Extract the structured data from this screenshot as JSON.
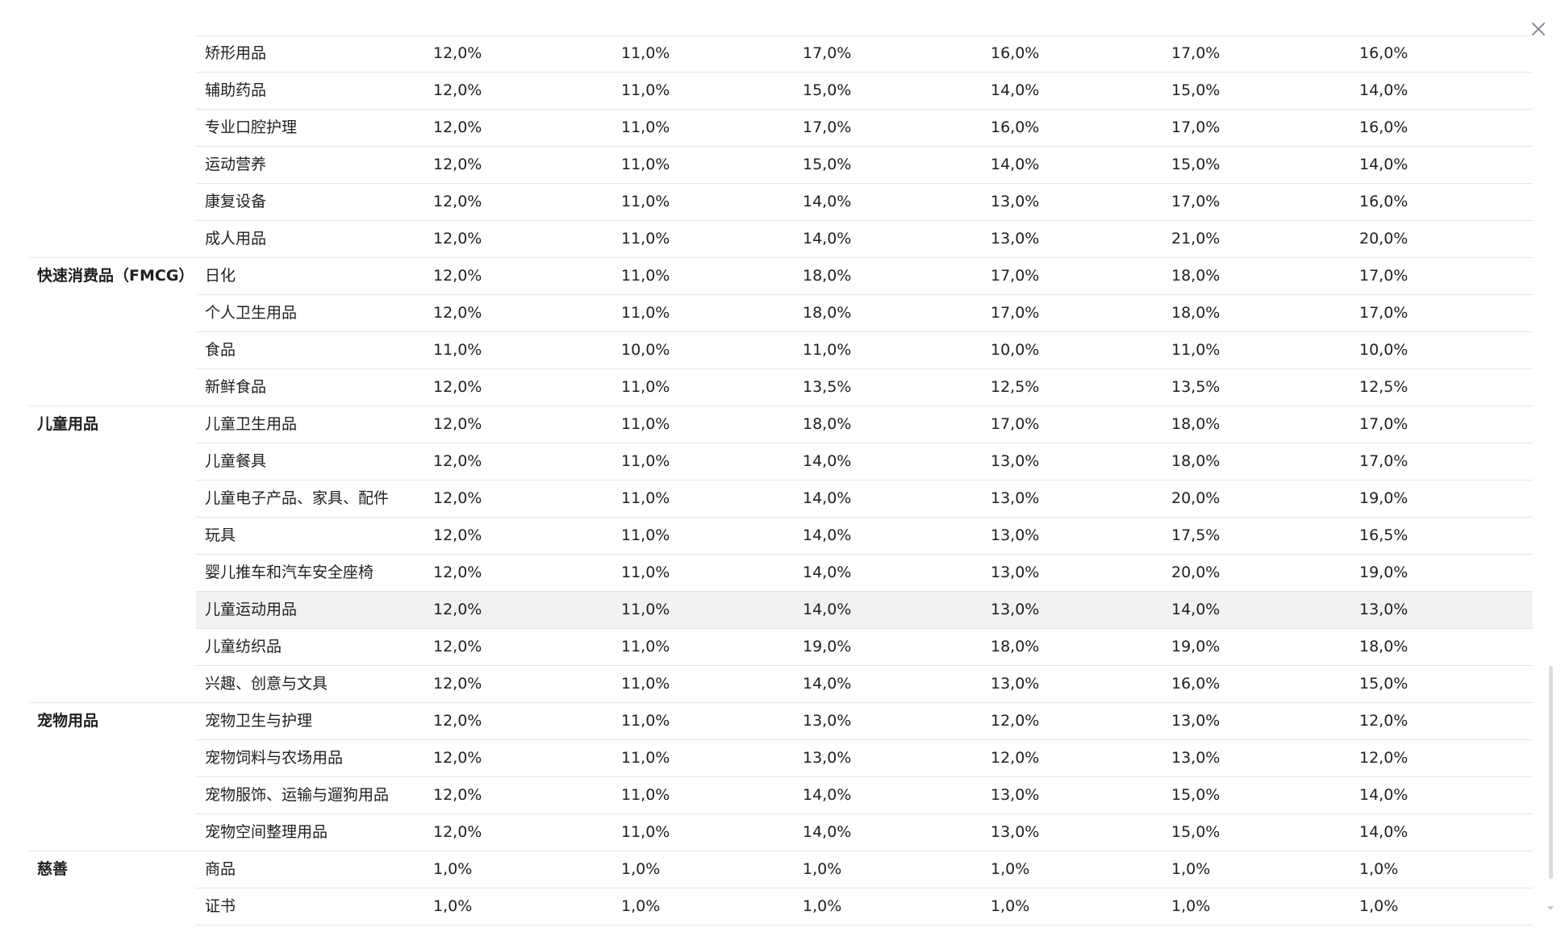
{
  "table": {
    "rows": [
      {
        "group": "",
        "sub": "矫形用品",
        "v": [
          "12,0%",
          "11,0%",
          "17,0%",
          "16,0%",
          "17,0%",
          "16,0%"
        ]
      },
      {
        "group": "",
        "sub": "辅助药品",
        "v": [
          "12,0%",
          "11,0%",
          "15,0%",
          "14,0%",
          "15,0%",
          "14,0%"
        ]
      },
      {
        "group": "",
        "sub": "专业口腔护理",
        "v": [
          "12,0%",
          "11,0%",
          "17,0%",
          "16,0%",
          "17,0%",
          "16,0%"
        ]
      },
      {
        "group": "",
        "sub": "运动营养",
        "v": [
          "12,0%",
          "11,0%",
          "15,0%",
          "14,0%",
          "15,0%",
          "14,0%"
        ]
      },
      {
        "group": "",
        "sub": "康复设备",
        "v": [
          "12,0%",
          "11,0%",
          "14,0%",
          "13,0%",
          "17,0%",
          "16,0%"
        ]
      },
      {
        "group": "",
        "sub": "成人用品",
        "v": [
          "12,0%",
          "11,0%",
          "14,0%",
          "13,0%",
          "21,0%",
          "20,0%"
        ]
      },
      {
        "group": "快速消费品（FMCG）",
        "sub": "日化",
        "v": [
          "12,0%",
          "11,0%",
          "18,0%",
          "17,0%",
          "18,0%",
          "17,0%"
        ]
      },
      {
        "group": "",
        "sub": "个人卫生用品",
        "v": [
          "12,0%",
          "11,0%",
          "18,0%",
          "17,0%",
          "18,0%",
          "17,0%"
        ]
      },
      {
        "group": "",
        "sub": "食品",
        "v": [
          "11,0%",
          "10,0%",
          "11,0%",
          "10,0%",
          "11,0%",
          "10,0%"
        ]
      },
      {
        "group": "",
        "sub": "新鲜食品",
        "v": [
          "12,0%",
          "11,0%",
          "13,5%",
          "12,5%",
          "13,5%",
          "12,5%"
        ]
      },
      {
        "group": "儿童用品",
        "sub": "儿童卫生用品",
        "v": [
          "12,0%",
          "11,0%",
          "18,0%",
          "17,0%",
          "18,0%",
          "17,0%"
        ]
      },
      {
        "group": "",
        "sub": "儿童餐具",
        "v": [
          "12,0%",
          "11,0%",
          "14,0%",
          "13,0%",
          "18,0%",
          "17,0%"
        ]
      },
      {
        "group": "",
        "sub": "儿童电子产品、家具、配件",
        "v": [
          "12,0%",
          "11,0%",
          "14,0%",
          "13,0%",
          "20,0%",
          "19,0%"
        ]
      },
      {
        "group": "",
        "sub": "玩具",
        "v": [
          "12,0%",
          "11,0%",
          "14,0%",
          "13,0%",
          "17,5%",
          "16,5%"
        ]
      },
      {
        "group": "",
        "sub": "婴儿推车和汽车安全座椅",
        "v": [
          "12,0%",
          "11,0%",
          "14,0%",
          "13,0%",
          "20,0%",
          "19,0%"
        ]
      },
      {
        "group": "",
        "sub": "儿童运动用品",
        "v": [
          "12,0%",
          "11,0%",
          "14,0%",
          "13,0%",
          "14,0%",
          "13,0%"
        ],
        "highlight": true
      },
      {
        "group": "",
        "sub": "儿童纺织品",
        "v": [
          "12,0%",
          "11,0%",
          "19,0%",
          "18,0%",
          "19,0%",
          "18,0%"
        ]
      },
      {
        "group": "",
        "sub": "兴趣、创意与文具",
        "v": [
          "12,0%",
          "11,0%",
          "14,0%",
          "13,0%",
          "16,0%",
          "15,0%"
        ]
      },
      {
        "group": "宠物用品",
        "sub": "宠物卫生与护理",
        "v": [
          "12,0%",
          "11,0%",
          "13,0%",
          "12,0%",
          "13,0%",
          "12,0%"
        ]
      },
      {
        "group": "",
        "sub": "宠物饲料与农场用品",
        "v": [
          "12,0%",
          "11,0%",
          "13,0%",
          "12,0%",
          "13,0%",
          "12,0%"
        ]
      },
      {
        "group": "",
        "sub": "宠物服饰、运输与遛狗用品",
        "v": [
          "12,0%",
          "11,0%",
          "14,0%",
          "13,0%",
          "15,0%",
          "14,0%"
        ]
      },
      {
        "group": "",
        "sub": "宠物空间整理用品",
        "v": [
          "12,0%",
          "11,0%",
          "14,0%",
          "13,0%",
          "15,0%",
          "14,0%"
        ]
      },
      {
        "group": "慈善",
        "sub": "商品",
        "v": [
          "1,0%",
          "1,0%",
          "1,0%",
          "1,0%",
          "1,0%",
          "1,0%"
        ]
      },
      {
        "group": "",
        "sub": "证书",
        "v": [
          "1,0%",
          "1,0%",
          "1,0%",
          "1,0%",
          "1,0%",
          "1,0%"
        ]
      }
    ]
  },
  "icons": {
    "close": "close-icon"
  },
  "colors": {
    "divider": "#e4e6ea",
    "highlight_row": "#f1f2f4",
    "text": "#1f1f1f",
    "close_icon": "#8a8d93"
  }
}
